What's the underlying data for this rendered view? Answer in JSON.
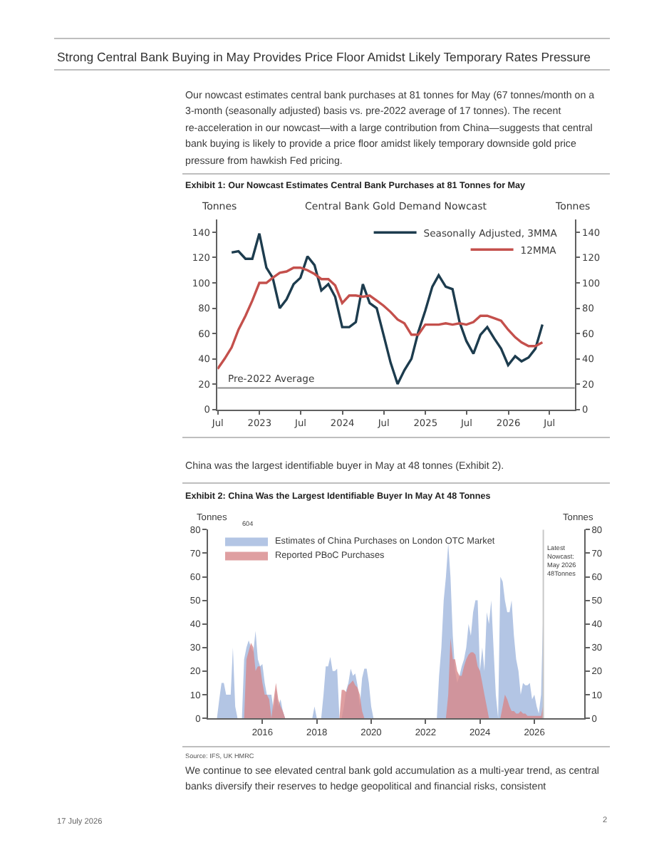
{
  "chart_data": [
    {
      "type": "line",
      "title": "Exhibit 1: Our Nowcast Estimates Central Bank Purchases at 81 Tonnes for May",
      "subtitle": "Central Bank Gold Demand Nowcast",
      "ylabel": "Tonnes",
      "y2label": "Tonnes",
      "annotations": [
        "Strong Central Bank Buying in May Provides Price Floor Amidst Likely Temporary Rates Pressure",
        "Our nowcast estimates central bank purchases at 81 tonnes for May (67 tonnes/month on a 3-month (seasonally adjusted) basis vs. pre-2022 average of 17 tonnes). The recent re-acceleration in our nowcast—with a large contribution from China—suggests that central bank buying is likely to provide a price floor amidst likely temporary downside gold price pressure from hawkish Fed pricing."
      ],
      "series": [
        {
          "name": "Seasonally Adjusted, 3MMA",
          "color": "#1d3c4e",
          "x": [
            "2022-08-31",
            "2022-09-30",
            "2022-10-31",
            "2022-11-30",
            "2022-12-31",
            "2023-01-31",
            "2023-02-28",
            "2023-03-31",
            "2023-04-30",
            "2023-05-31",
            "2023-06-30",
            "2023-07-31",
            "2023-08-31",
            "2023-09-30",
            "2023-10-31",
            "2023-11-30",
            "2023-12-31",
            "2024-01-31",
            "2024-02-29",
            "2024-03-31",
            "2024-04-30",
            "2024-05-31",
            "2024-06-30",
            "2024-07-31",
            "2024-08-31",
            "2024-09-30",
            "2024-10-31",
            "2024-11-30",
            "2024-12-31",
            "2025-01-31",
            "2025-02-28",
            "2025-03-31",
            "2025-04-30",
            "2025-05-31",
            "2025-06-30",
            "2025-07-31",
            "2025-08-31",
            "2025-09-30",
            "2025-10-31",
            "2025-11-30",
            "2025-12-31",
            "2026-01-31",
            "2026-02-28",
            "2026-03-31",
            "2026-04-30",
            "2026-05-31"
          ],
          "values": [
            124,
            125,
            119,
            119,
            139,
            112,
            104,
            80,
            87,
            99,
            104,
            121,
            114,
            94,
            99,
            89,
            65,
            65,
            69,
            99,
            84,
            80,
            59,
            37,
            20,
            31,
            40,
            61,
            78,
            97,
            106,
            97,
            95,
            69,
            54,
            44,
            59,
            65,
            56,
            48,
            35,
            42,
            38,
            41,
            48,
            67
          ]
        },
        {
          "name": "12MMA",
          "color": "#c4504c",
          "x": [
            "2022-06-30",
            "2022-07-31",
            "2022-08-31",
            "2022-09-30",
            "2022-10-31",
            "2022-11-30",
            "2022-12-31",
            "2023-01-31",
            "2023-02-28",
            "2023-03-31",
            "2023-04-30",
            "2023-05-31",
            "2023-06-30",
            "2023-07-31",
            "2023-08-31",
            "2023-09-30",
            "2023-10-31",
            "2023-11-30",
            "2023-12-31",
            "2024-01-31",
            "2024-02-29",
            "2024-03-31",
            "2024-04-30",
            "2024-05-31",
            "2024-06-30",
            "2024-07-31",
            "2024-08-31",
            "2024-09-30",
            "2024-10-31",
            "2024-11-30",
            "2024-12-31",
            "2025-01-31",
            "2025-02-28",
            "2025-03-31",
            "2025-04-30",
            "2025-05-31",
            "2025-06-30",
            "2025-07-31",
            "2025-08-31",
            "2025-09-30",
            "2025-10-31",
            "2025-11-30",
            "2025-12-31",
            "2026-01-31",
            "2026-02-28",
            "2026-03-31",
            "2026-04-30",
            "2026-05-31"
          ],
          "values": [
            32,
            40,
            49,
            63,
            74,
            86,
            100,
            100,
            104,
            108,
            109,
            112,
            112,
            110,
            107,
            103,
            103,
            98,
            84,
            90,
            90,
            89,
            90,
            86,
            82,
            77,
            71,
            68,
            59,
            59,
            67,
            67,
            67,
            68,
            67,
            68,
            67,
            69,
            74,
            74,
            72,
            70,
            63,
            57,
            53,
            50,
            50,
            53
          ]
        }
      ],
      "xlim": [
        "2022-06-30",
        "2026-10-20"
      ],
      "xticks": [
        {
          "value": "2022-07",
          "label": "Jul"
        },
        {
          "value": "2023-01",
          "label": "2023"
        },
        {
          "value": "2023-07",
          "label": "Jul"
        },
        {
          "value": "2024-01",
          "label": "2024"
        },
        {
          "value": "2024-07",
          "label": "Jul"
        },
        {
          "value": "2025-01",
          "label": "2025"
        },
        {
          "value": "2025-07",
          "label": "Jul"
        },
        {
          "value": "2026-01",
          "label": "2026"
        },
        {
          "value": "2026-07",
          "label": "Jul"
        }
      ],
      "ylim": [
        0,
        150
      ],
      "yticks": [
        0,
        20,
        40,
        60,
        80,
        100,
        120,
        140
      ],
      "y2lim": [
        0,
        150
      ],
      "y2ticks": [
        0,
        20,
        40,
        60,
        80,
        100,
        120,
        140
      ],
      "ref_lines": [
        {
          "axis": "y",
          "value": 17,
          "label": "Pre-2022 Average",
          "color": "#8c8c8c"
        }
      ],
      "legend": "top right"
    },
    {
      "type": "area",
      "title": "Exhibit 2: China Was the Largest Identifiable Buyer In May At 48 Tonnes",
      "ylabel": "Tonnes",
      "y2label": "Tonnes",
      "annotations": [
        "China was the largest identifiable buyer in May at 48 tonnes (Exhibit 2).",
        "604",
        "Source: IFS, UK HMRC",
        "We continue to see elevated central bank gold accumulation as a multi-year trend, as central banks diversify their reserves to hedge geopolitical and financial risks, consistent",
        "17 July 2026",
        "2"
      ],
      "series": [
        {
          "name": "Estimates of China Purchases on London OTC Market",
          "color": "#b3c5e4",
          "x": [
            "2014-05",
            "2014-06",
            "2014-07",
            "2014-08",
            "2014-09",
            "2014-10",
            "2014-11",
            "2014-12",
            "2015-01",
            "2015-02",
            "2015-04",
            "2015-05",
            "2015-06",
            "2015-07",
            "2015-08",
            "2015-09",
            "2015-10",
            "2015-11",
            "2015-12",
            "2016-01",
            "2016-02",
            "2016-03",
            "2016-04",
            "2016-05",
            "2016-06",
            "2016-07",
            "2016-08",
            "2016-09",
            "2016-10",
            "2016-11",
            "2017-11",
            "2017-12",
            "2018-01",
            "2018-03",
            "2018-04",
            "2018-05",
            "2018-06",
            "2018-07",
            "2018-08",
            "2018-09",
            "2018-10",
            "2018-11",
            "2018-12",
            "2019-01",
            "2019-02",
            "2019-03",
            "2019-04",
            "2019-05",
            "2019-06",
            "2019-07",
            "2019-08",
            "2019-09",
            "2019-10",
            "2019-11",
            "2019-12",
            "2020-01",
            "2020-02",
            "2022-06",
            "2022-07",
            "2022-08",
            "2022-09",
            "2022-10",
            "2022-11",
            "2022-12",
            "2023-01",
            "2023-02",
            "2023-03",
            "2023-04",
            "2023-05",
            "2023-06",
            "2023-07",
            "2023-08",
            "2023-09",
            "2023-10",
            "2023-11",
            "2023-12",
            "2024-01",
            "2024-02",
            "2024-03",
            "2024-04",
            "2024-05",
            "2024-06",
            "2024-07",
            "2024-08",
            "2024-09",
            "2024-10",
            "2024-11",
            "2024-12",
            "2025-01",
            "2025-02",
            "2025-03",
            "2025-04",
            "2025-05",
            "2025-06",
            "2025-07",
            "2025-08",
            "2025-09",
            "2025-10",
            "2025-11",
            "2025-12",
            "2026-01",
            "2026-02",
            "2026-03",
            "2026-04",
            "2026-05"
          ],
          "values": [
            0,
            8,
            15,
            15,
            10,
            10,
            10,
            30,
            5,
            0,
            0,
            25,
            30,
            33,
            30,
            28,
            37,
            25,
            22,
            23,
            15,
            10,
            10,
            10,
            3,
            12,
            5,
            8,
            3,
            0,
            0,
            5,
            0,
            0,
            10,
            22,
            22,
            26,
            20,
            20,
            21,
            0,
            0,
            5,
            12,
            15,
            21,
            18,
            19,
            14,
            5,
            17,
            21,
            21,
            15,
            5,
            0,
            0,
            18,
            30,
            50,
            60,
            74,
            60,
            35,
            20,
            15,
            18,
            22,
            25,
            30,
            40,
            35,
            45,
            50,
            50,
            20,
            30,
            20,
            45,
            40,
            50,
            30,
            10,
            0,
            60,
            58,
            50,
            45,
            45,
            50,
            35,
            25,
            20,
            10,
            15,
            14,
            14,
            15,
            8,
            10,
            5,
            2,
            10,
            48
          ]
        },
        {
          "name": "Reported PBoC Purchases",
          "color": "#d7878a",
          "x": [
            "2015-05",
            "2015-06",
            "2015-07",
            "2015-08",
            "2015-09",
            "2015-10",
            "2015-11",
            "2015-12",
            "2016-01",
            "2016-02",
            "2016-03",
            "2016-04",
            "2016-05",
            "2016-06",
            "2016-07",
            "2016-08",
            "2016-09",
            "2016-10",
            "2016-11",
            "2018-11",
            "2018-12",
            "2019-01",
            "2019-02",
            "2019-03",
            "2019-04",
            "2019-05",
            "2019-06",
            "2019-07",
            "2019-08",
            "2019-09",
            "2019-10",
            "2022-10",
            "2022-11",
            "2022-12",
            "2023-01",
            "2023-02",
            "2023-03",
            "2023-04",
            "2023-05",
            "2023-06",
            "2023-07",
            "2023-08",
            "2023-09",
            "2023-10",
            "2023-11",
            "2023-12",
            "2024-01",
            "2024-02",
            "2024-03",
            "2024-04",
            "2024-05",
            "2024-10",
            "2024-11",
            "2024-12",
            "2025-01",
            "2025-02",
            "2025-03",
            "2025-04",
            "2025-05",
            "2025-06",
            "2025-07",
            "2025-08",
            "2025-09",
            "2025-10",
            "2025-11",
            "2025-12",
            "2026-01",
            "2026-02",
            "2026-03",
            "2026-04",
            "2026-05"
          ],
          "values": [
            0,
            25,
            null,
            32,
            30,
            20,
            22,
            22,
            15,
            10,
            10,
            8,
            0,
            8,
            15,
            8,
            5,
            3,
            0,
            0,
            12,
            12,
            11,
            14,
            15,
            16,
            14,
            13,
            10,
            3,
            0,
            0,
            10,
            34,
            25,
            25,
            20,
            18,
            18,
            22,
            25,
            27,
            28,
            28,
            27,
            22,
            20,
            15,
            10,
            5,
            0,
            0,
            5,
            10,
            8,
            5,
            3,
            3,
            2,
            2,
            3,
            2,
            2,
            1,
            1,
            1,
            1,
            1,
            1,
            1,
            6
          ]
        }
      ],
      "xlim": [
        "2014-01",
        "2027-11"
      ],
      "xticks": [
        {
          "value": "2016-01",
          "label": "2016"
        },
        {
          "value": "2018-01",
          "label": "2018"
        },
        {
          "value": "2020-01",
          "label": "2020"
        },
        {
          "value": "2022-01",
          "label": "2022"
        },
        {
          "value": "2024-01",
          "label": "2024"
        },
        {
          "value": "2026-01",
          "label": "2026"
        }
      ],
      "ylim": [
        0,
        80
      ],
      "yticks": [
        0,
        10,
        20,
        30,
        40,
        50,
        60,
        70,
        80
      ],
      "y2lim": [
        0,
        80
      ],
      "y2ticks": [
        0,
        10,
        20,
        30,
        40,
        50,
        60,
        70,
        80
      ],
      "ref_lines": [
        {
          "axis": "x",
          "value": "2026-05",
          "label": "Latest\nNowcast:\nMay 2026\n48Tonnes",
          "color": "#c8c8c8"
        }
      ],
      "legend": "top left"
    }
  ]
}
